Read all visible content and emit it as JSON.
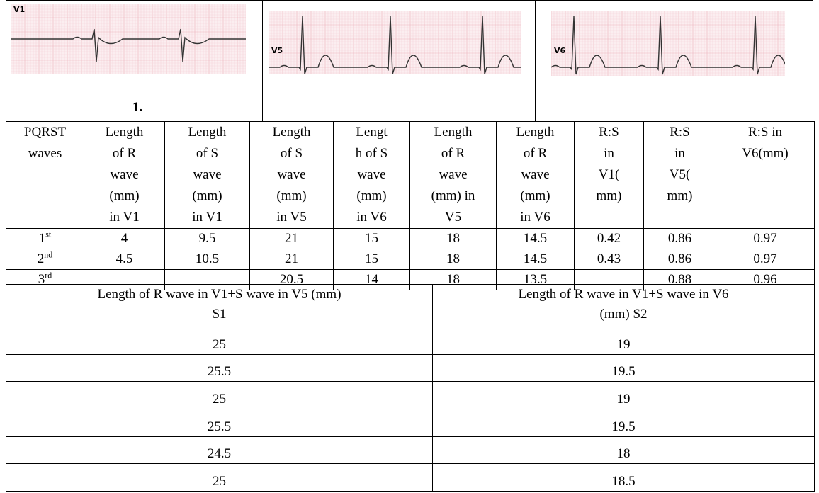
{
  "images": [
    {
      "lead": "V1",
      "caption": "1."
    },
    {
      "lead": "V5"
    },
    {
      "lead": "V6"
    }
  ],
  "table": {
    "header": [
      [
        "PQRST",
        "waves"
      ],
      [
        "Length",
        "of R",
        "wave",
        "(mm)",
        "in V1"
      ],
      [
        "Length",
        "of S",
        "wave",
        "(mm)",
        "in V1"
      ],
      [
        "Length",
        "of S",
        "wave",
        "(mm)",
        "in V5"
      ],
      [
        "Lengt",
        "h of S",
        "wave",
        "(mm)",
        "in V6"
      ],
      [
        "Length",
        "of R",
        "wave",
        "(mm) in",
        "V5"
      ],
      [
        "Length",
        "of R",
        "wave",
        "(mm)",
        "in V6"
      ],
      [
        "R:S",
        "in",
        "V1(",
        "mm)"
      ],
      [
        "R:S",
        "in",
        "V5(",
        "mm)"
      ],
      [
        "R:S in",
        "V6(mm)"
      ]
    ],
    "rows": [
      {
        "rank": {
          "num": "1",
          "suffix": "st"
        },
        "cells": [
          "4",
          "9.5",
          "21",
          "15",
          "18",
          "14.5",
          "0.42",
          "0.86",
          "0.97"
        ]
      },
      {
        "rank": {
          "num": "2",
          "suffix": "nd"
        },
        "cells": [
          "4.5",
          "10.5",
          "21",
          "15",
          "18",
          "14.5",
          "0.43",
          "0.86",
          "0.97"
        ]
      },
      {
        "rank": {
          "num": "3",
          "suffix": "rd"
        },
        "cells": [
          null,
          null,
          "20.5",
          "14",
          "18",
          "13.5",
          null,
          "0.88",
          "0.96"
        ]
      }
    ]
  },
  "summary": {
    "header": [
      [
        "Length of R wave in V1+S wave in V5 (mm)",
        "S1"
      ],
      [
        "Length of R wave in V1+S wave in V6",
        "(mm) S2"
      ]
    ],
    "rows": [
      [
        "25",
        "19"
      ],
      [
        "25.5",
        "19.5"
      ],
      [
        "25",
        "19"
      ],
      [
        "25.5",
        "19.5"
      ],
      [
        "24.5",
        "18"
      ],
      [
        "25",
        "18.5"
      ]
    ]
  }
}
